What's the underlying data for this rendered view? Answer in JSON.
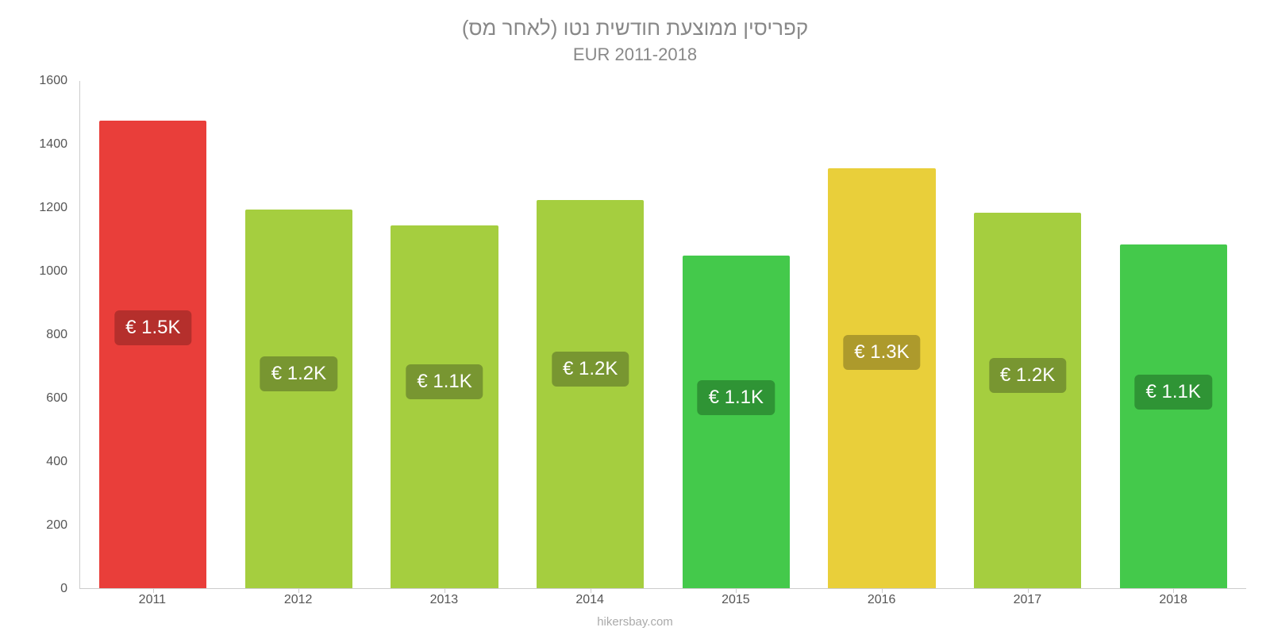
{
  "chart": {
    "type": "bar",
    "title": "קפריסין ממוצעת חודשית נטו (לאחר מס)",
    "subtitle": "EUR 2011-2018",
    "title_color": "#888888",
    "title_fontsize": 26,
    "subtitle_fontsize": 22,
    "background_color": "#ffffff",
    "ylim": [
      0,
      1600
    ],
    "ytick_step": 200,
    "y_ticks": [
      0,
      200,
      400,
      600,
      800,
      1000,
      1200,
      1400,
      1600
    ],
    "x_categories": [
      "2011",
      "2012",
      "2013",
      "2014",
      "2015",
      "2016",
      "2017",
      "2018"
    ],
    "values": [
      1475,
      1195,
      1145,
      1225,
      1050,
      1325,
      1185,
      1085
    ],
    "bar_colors": [
      "#e93e3a",
      "#a5ce3f",
      "#a5ce3f",
      "#a5ce3f",
      "#44c94b",
      "#e9cf3a",
      "#a5ce3f",
      "#44c94b"
    ],
    "value_labels": [
      "€ 1.5K",
      "€ 1.2K",
      "€ 1.1K",
      "€ 1.2K",
      "€ 1.1K",
      "€ 1.3K",
      "€ 1.2K",
      "€ 1.1K"
    ],
    "label_bg_colors": [
      "#b52f2c",
      "#789631",
      "#789631",
      "#789631",
      "#2f9435",
      "#ad9a2c",
      "#789631",
      "#2f9435"
    ],
    "label_fontsize": 24,
    "tick_fontsize": 16,
    "tick_color": "#555555",
    "axis_color": "#cccccc",
    "bar_width_pct": 9.2,
    "footer": "hikersbay.com",
    "footer_color": "#aaaaaa"
  }
}
